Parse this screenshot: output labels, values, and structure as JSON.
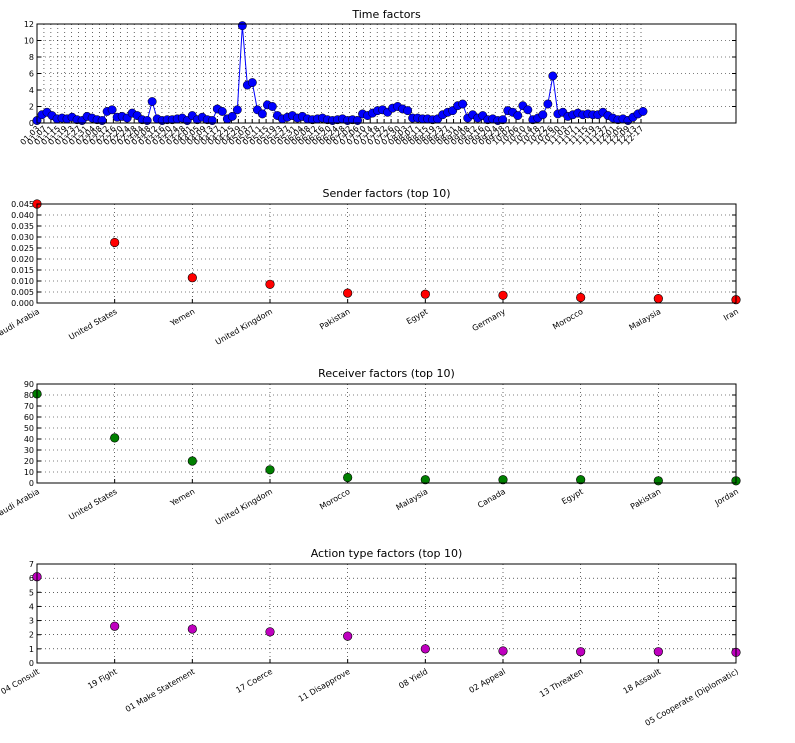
{
  "chart_data": [
    {
      "type": "line",
      "title": "Time factors",
      "color": "#0000ff",
      "ylim": [
        0,
        12
      ],
      "yticks": [
        0,
        2,
        4,
        6,
        8,
        10,
        12
      ],
      "grid": true,
      "x_tick_labels": [
        "01-03",
        "01-07",
        "01-11",
        "01-15",
        "01-19",
        "01-23",
        "01-27",
        "01-31",
        "02-04",
        "02-08",
        "02-12",
        "02-16",
        "02-20",
        "02-24",
        "02-28",
        "03-04",
        "03-08",
        "03-12",
        "03-16",
        "03-20",
        "03-24",
        "03-28",
        "04-01",
        "04-05",
        "04-09",
        "04-13",
        "04-17",
        "04-21",
        "04-25",
        "04-29",
        "05-03",
        "05-07",
        "05-11",
        "05-15",
        "05-19",
        "05-23",
        "05-27",
        "05-31",
        "06-04",
        "06-08",
        "06-12",
        "06-16",
        "06-20",
        "06-24",
        "06-28",
        "07-02",
        "07-06",
        "07-10",
        "07-14",
        "07-18",
        "07-22",
        "07-26",
        "07-30",
        "08-03",
        "08-07",
        "08-11",
        "08-15",
        "08-19",
        "08-23",
        "08-27",
        "08-31",
        "09-04",
        "09-08",
        "09-12",
        "09-16",
        "09-20",
        "09-24",
        "09-28",
        "10-02",
        "10-06",
        "10-10",
        "10-14",
        "10-18",
        "10-22",
        "10-26",
        "10-30",
        "11-03",
        "11-07",
        "11-11",
        "11-15",
        "11-19",
        "11-23",
        "11-27",
        "12-01",
        "12-05",
        "12-09",
        "12-13",
        "12-17"
      ],
      "values": [
        0.3,
        1.0,
        1.3,
        0.9,
        0.5,
        0.6,
        0.5,
        0.7,
        0.4,
        0.3,
        0.8,
        0.6,
        0.4,
        0.3,
        1.4,
        1.6,
        0.7,
        0.8,
        0.6,
        1.2,
        0.9,
        0.4,
        0.3,
        2.6,
        0.5,
        0.3,
        0.4,
        0.4,
        0.5,
        0.6,
        0.3,
        0.9,
        0.4,
        0.7,
        0.4,
        0.3,
        1.7,
        1.4,
        0.5,
        0.8,
        1.6,
        11.8,
        4.6,
        4.9,
        1.6,
        1.1,
        2.2,
        2.0,
        0.9,
        0.5,
        0.7,
        0.9,
        0.6,
        0.8,
        0.5,
        0.4,
        0.5,
        0.6,
        0.4,
        0.3,
        0.4,
        0.5,
        0.3,
        0.4,
        0.3,
        1.1,
        0.9,
        1.2,
        1.5,
        1.6,
        1.3,
        1.8,
        2.0,
        1.7,
        1.5,
        0.6,
        0.6,
        0.5,
        0.5,
        0.4,
        0.5,
        1.0,
        1.3,
        1.5,
        2.1,
        2.3,
        0.6,
        1.0,
        0.6,
        0.9,
        0.4,
        0.5,
        0.3,
        0.4,
        1.5,
        1.3,
        0.9,
        2.1,
        1.6,
        0.4,
        0.6,
        1.0,
        2.3,
        5.7,
        1.1,
        1.3,
        0.8,
        1.0,
        1.2,
        1.0,
        1.1,
        1.0,
        1.0,
        1.3,
        0.9,
        0.6,
        0.4,
        0.5,
        0.3,
        0.7,
        1.1,
        1.4
      ]
    },
    {
      "type": "scatter",
      "title": "Sender factors (top 10)",
      "color": "#ff0000",
      "ylim": [
        0,
        0.045
      ],
      "yticks": [
        "0.000",
        "0.005",
        "0.010",
        "0.015",
        "0.020",
        "0.025",
        "0.030",
        "0.035",
        "0.040",
        "0.045"
      ],
      "grid": true,
      "categories": [
        "Saudi Arabia",
        "United States",
        "Yemen",
        "United Kingdom",
        "Pakistan",
        "Egypt",
        "Germany",
        "Morocco",
        "Malaysia",
        "Iran"
      ],
      "values": [
        0.045,
        0.0275,
        0.0115,
        0.0085,
        0.0045,
        0.004,
        0.0035,
        0.0025,
        0.002,
        0.0015
      ]
    },
    {
      "type": "scatter",
      "title": "Receiver factors (top 10)",
      "color": "#007f00",
      "ylim": [
        0,
        90
      ],
      "yticks": [
        "0",
        "10",
        "20",
        "30",
        "40",
        "50",
        "60",
        "70",
        "80",
        "90"
      ],
      "grid": true,
      "categories": [
        "Saudi Arabia",
        "United States",
        "Yemen",
        "United Kingdom",
        "Morocco",
        "Malaysia",
        "Canada",
        "Egypt",
        "Pakistan",
        "Jordan"
      ],
      "values": [
        81,
        41,
        20,
        12,
        5,
        3,
        3,
        3,
        2,
        2
      ]
    },
    {
      "type": "scatter",
      "title": "Action type factors (top 10)",
      "color": "#bf00bf",
      "ylim": [
        0,
        7
      ],
      "yticks": [
        "0",
        "1",
        "2",
        "3",
        "4",
        "5",
        "6",
        "7"
      ],
      "grid": true,
      "categories": [
        "04 Consult",
        "19 Fight",
        "01 Make Statement",
        "17 Coerce",
        "11 Disapprove",
        "08 Yield",
        "02 Appeal",
        "13 Threaten",
        "18 Assault",
        "05 Cooperate (Diplomatic)"
      ],
      "values": [
        6.1,
        2.6,
        2.4,
        2.2,
        1.9,
        1.0,
        0.85,
        0.8,
        0.8,
        0.75
      ]
    }
  ]
}
